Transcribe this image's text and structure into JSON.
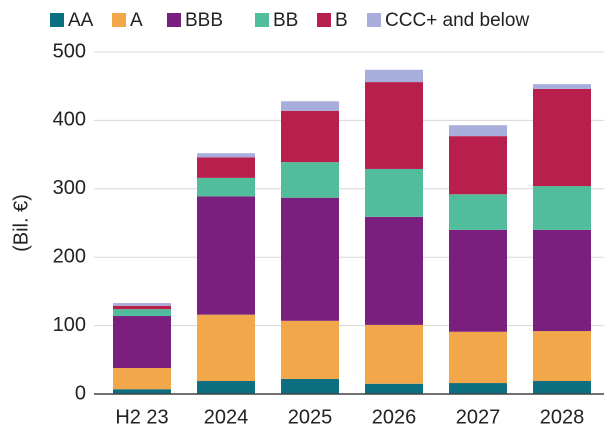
{
  "chart_data": {
    "type": "stacked_bar",
    "y_label": "(Bil. €)",
    "categories": [
      "H2 23",
      "2024",
      "2025",
      "2026",
      "2027",
      "2028"
    ],
    "series": [
      {
        "name": "AA",
        "color": "#0c6f80",
        "values": [
          7,
          19,
          22,
          15,
          16,
          19
        ]
      },
      {
        "name": "A",
        "color": "#f2a74b",
        "values": [
          31,
          97,
          85,
          86,
          75,
          73
        ]
      },
      {
        "name": "BBB",
        "color": "#7a1f7d",
        "values": [
          76,
          173,
          180,
          158,
          149,
          148
        ]
      },
      {
        "name": "BB",
        "color": "#52bd9c",
        "values": [
          10,
          27,
          52,
          70,
          52,
          64
        ]
      },
      {
        "name": "B",
        "color": "#b81f4d",
        "values": [
          5,
          30,
          75,
          127,
          85,
          142
        ]
      },
      {
        "name": "CCC+ and below",
        "color": "#a8aedb",
        "values": [
          4,
          6,
          14,
          18,
          16,
          7
        ]
      }
    ],
    "ylim": [
      0,
      500
    ],
    "yticks": [
      0,
      100,
      200,
      300,
      400,
      500
    ],
    "grid": true,
    "legend": "top"
  }
}
